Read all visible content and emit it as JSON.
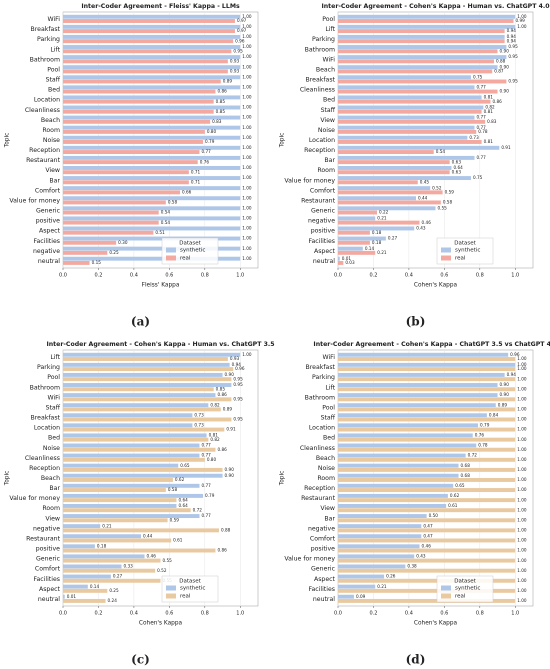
{
  "chart_data": [
    {
      "type": "barh",
      "title": "Inter-Coder Agreement - Fleiss' Kappa - LLMs",
      "caption": "(a)",
      "xlabel": "Fleiss' Kappa",
      "ylabel": "Topic",
      "legend_title": "Dataset",
      "legend": "lower right",
      "grid": true,
      "xlim": [
        0,
        1.1
      ],
      "xticks": [
        {
          "value": 0,
          "label": "0.0"
        },
        0.2,
        0.4,
        0.6,
        0.8,
        {
          "value": 1,
          "label": "1.0"
        }
      ],
      "categories": [
        "WiFi",
        "Breakfast",
        "Parking",
        "Lift",
        "Bathroom",
        "Pool",
        "Staff",
        "Bed",
        "Location",
        "Cleanliness",
        "Beach",
        "Room",
        "Noise",
        "Reception",
        "Restaurant",
        "View",
        "Bar",
        "Comfort",
        "Value for money",
        "Generic",
        "positive",
        "Aspect",
        "Facilities",
        "negative",
        "neutral"
      ],
      "series": [
        {
          "name": "synthetic",
          "color": "#aec7e8",
          "values": [
            1,
            1,
            1,
            1,
            1,
            1,
            1,
            1,
            1,
            1,
            1,
            1,
            1,
            1,
            1,
            1,
            1,
            1,
            1,
            1,
            1,
            1,
            1,
            1,
            1
          ],
          "value_labels": [
            "1.00",
            "1.00",
            "1.00",
            "1.00",
            "1.00",
            "1.00",
            "1.00",
            "1.00",
            "1.00",
            "1.00",
            "1.00",
            "1.00",
            "1.00",
            "1.00",
            "1.00",
            "1.00",
            "1.00",
            "1.00",
            "1.00",
            "1.00",
            "1.00",
            "1.00",
            "1.00",
            "1.00",
            "1.00"
          ]
        },
        {
          "name": "real",
          "color": "#f4a9a0",
          "values": [
            0.97,
            0.97,
            0.96,
            0.95,
            0.93,
            0.93,
            0.89,
            0.86,
            0.85,
            0.85,
            0.83,
            0.8,
            0.79,
            0.77,
            0.76,
            0.71,
            0.71,
            0.66,
            0.58,
            0.54,
            0.54,
            0.51,
            0.3,
            0.25,
            0.15
          ],
          "value_labels": [
            "0.97",
            "0.97",
            "0.96",
            "0.95",
            "0.93",
            "0.93",
            "0.89",
            "0.86",
            "0.85",
            "0.85",
            "0.83",
            "0.80",
            "0.79",
            "0.77",
            "0.76",
            "0.71",
            "0.71",
            "0.66",
            "0.58",
            "0.54",
            "0.54",
            "0.51",
            "0.30",
            "0.25",
            "0.15"
          ]
        }
      ]
    },
    {
      "type": "barh",
      "title": "Inter-Coder Agreement - Cohen's Kappa - Human vs. ChatGPT 4.0",
      "caption": "(b)",
      "xlabel": "Cohen's Kappa",
      "ylabel": "Topic",
      "legend_title": "Dataset",
      "legend": "lower right",
      "grid": true,
      "xlim": [
        0,
        1.1
      ],
      "xticks": [
        {
          "value": 0,
          "label": "0.0"
        },
        0.2,
        0.4,
        0.6,
        0.8,
        {
          "value": 1,
          "label": "1.0"
        }
      ],
      "categories": [
        "Pool",
        "Lift",
        "Parking",
        "Bathroom",
        "WiFi",
        "Beach",
        "Breakfast",
        "Cleanliness",
        "Bed",
        "Staff",
        "View",
        "Noise",
        "Location",
        "Reception",
        "Bar",
        "Room",
        "Value for money",
        "Comfort",
        "Restaurant",
        "Generic",
        "negative",
        "positive",
        "Facilities",
        "Aspect",
        "neutral"
      ],
      "series": [
        {
          "name": "synthetic",
          "color": "#aec7e8",
          "values": [
            1,
            1,
            0.94,
            0.95,
            0.95,
            0.9,
            0.75,
            0.77,
            0.81,
            0.82,
            0.77,
            0.77,
            0.73,
            0.91,
            0.77,
            0.64,
            0.75,
            0.52,
            0.44,
            0.55,
            0.21,
            0.43,
            0.27,
            0.14,
            0.01
          ],
          "value_labels": [
            "1.00",
            "1.00",
            "0.94",
            "0.95",
            "0.95",
            "0.90",
            "0.75",
            "0.77",
            "0.81",
            "0.82",
            "0.77",
            "0.77",
            "0.73",
            "0.91",
            "0.77",
            "0.64",
            "0.75",
            "0.52",
            "0.44",
            "0.55",
            "0.21",
            "0.43",
            "0.27",
            "0.14",
            "0.01"
          ]
        },
        {
          "name": "real",
          "color": "#f4a9a0",
          "values": [
            0.99,
            0.94,
            0.94,
            0.9,
            0.88,
            0.87,
            0.95,
            0.9,
            0.86,
            0.81,
            0.83,
            0.78,
            0.81,
            0.54,
            0.63,
            0.63,
            0.45,
            0.59,
            0.58,
            0.22,
            0.46,
            0.18,
            0.18,
            0.21,
            0.03
          ],
          "value_labels": [
            "0.99",
            "0.94",
            "0.94",
            "0.90",
            "0.88",
            "0.87",
            "0.95",
            "0.90",
            "0.86",
            "0.81",
            "0.83",
            "0.78",
            "0.81",
            "0.54",
            "0.63",
            "0.63",
            "0.45",
            "0.59",
            "0.58",
            "0.22",
            "0.46",
            "0.18",
            "0.18",
            "0.21",
            "0.03"
          ]
        }
      ]
    },
    {
      "type": "barh",
      "title": "Inter-Coder Agreement - Cohen's Kappa - Human vs. ChatGPT 3.5",
      "caption": "(c)",
      "xlabel": "Cohen's Kappa",
      "ylabel": "Topic",
      "legend_title": "Dataset",
      "legend": "lower right",
      "grid": true,
      "xlim": [
        0,
        1.1
      ],
      "xticks": [
        {
          "value": 0,
          "label": "0.0"
        },
        0.2,
        0.4,
        0.6,
        0.8,
        {
          "value": 1,
          "label": "1.0"
        }
      ],
      "categories": [
        "Lift",
        "Parking",
        "Pool",
        "Bathroom",
        "WiFi",
        "Staff",
        "Breakfast",
        "Location",
        "Bed",
        "Noise",
        "Cleanliness",
        "Reception",
        "Beach",
        "Bar",
        "Value for money",
        "Room",
        "View",
        "negative",
        "Restaurant",
        "positive",
        "Generic",
        "Comfort",
        "Facilities",
        "Aspect",
        "neutral"
      ],
      "series": [
        {
          "name": "synthetic",
          "color": "#aec7e8",
          "values": [
            1,
            0.94,
            0.9,
            0.95,
            0.86,
            0.82,
            0.73,
            0.73,
            0.81,
            0.77,
            0.77,
            0.65,
            0.9,
            0.77,
            0.79,
            0.64,
            0.77,
            0.21,
            0.44,
            0.18,
            0.46,
            0.33,
            0.27,
            0.14,
            0.01
          ],
          "value_labels": [
            "1.00",
            "0.94",
            "0.90",
            "0.95",
            "0.86",
            "0.82",
            "0.73",
            "0.73",
            "0.81",
            "0.77",
            "0.77",
            "0.65",
            "0.90",
            "0.77",
            "0.79",
            "0.64",
            "0.77",
            "0.21",
            "0.44",
            "0.18",
            "0.46",
            "0.33",
            "0.27",
            "0.14",
            "0.01"
          ]
        },
        {
          "name": "real",
          "color": "#e9c9a0",
          "values": [
            0.93,
            0.96,
            0.95,
            0.85,
            0.95,
            0.89,
            0.95,
            0.91,
            0.82,
            0.86,
            0.8,
            0.9,
            0.62,
            0.58,
            0.64,
            0.72,
            0.59,
            0.88,
            0.61,
            0.86,
            0.55,
            0.52,
            0.55,
            0.25,
            0.24
          ],
          "value_labels": [
            "0.93",
            "0.96",
            "0.95",
            "0.85",
            "0.95",
            "0.89",
            "0.95",
            "0.91",
            "0.82",
            "0.86",
            "0.80",
            "0.90",
            "0.62",
            "0.58",
            "0.64",
            "0.72",
            "0.59",
            "0.88",
            "0.61",
            "0.86",
            "0.55",
            "0.52",
            "0.55",
            "0.25",
            "0.24"
          ]
        }
      ]
    },
    {
      "type": "barh",
      "title": "Inter-Coder Agreement - Cohen's Kappa - ChatGPT 3.5 vs ChatGPT 4.0",
      "caption": "(d)",
      "xlabel": "Cohen's Kappa",
      "ylabel": "Topic",
      "legend_title": "Dataset",
      "legend": "lower right",
      "grid": true,
      "xlim": [
        0,
        1.1
      ],
      "xticks": [
        {
          "value": 0,
          "label": "0.0"
        },
        0.2,
        0.4,
        0.6,
        0.8,
        {
          "value": 1,
          "label": "1.0"
        }
      ],
      "categories": [
        "WiFi",
        "Breakfast",
        "Parking",
        "Lift",
        "Bathroom",
        "Pool",
        "Staff",
        "Location",
        "Bed",
        "Cleanliness",
        "Beach",
        "Noise",
        "Room",
        "Reception",
        "Restaurant",
        "View",
        "Bar",
        "negative",
        "Comfort",
        "positive",
        "Value for money",
        "Generic",
        "Aspect",
        "Facilities",
        "neutral"
      ],
      "series": [
        {
          "name": "synthetic",
          "color": "#aec7e8",
          "values": [
            0.96,
            1,
            0.94,
            0.9,
            0.9,
            0.89,
            0.84,
            0.79,
            0.76,
            0.78,
            0.72,
            0.68,
            0.68,
            0.65,
            0.62,
            0.61,
            0.5,
            0.47,
            0.47,
            0.46,
            0.43,
            0.38,
            0.26,
            0.21,
            0.09
          ],
          "value_labels": [
            "0.96",
            "1.00",
            "0.94",
            "0.90",
            "0.90",
            "0.89",
            "0.84",
            "0.79",
            "0.76",
            "0.78",
            "0.72",
            "0.68",
            "0.68",
            "0.65",
            "0.62",
            "0.61",
            "0.50",
            "0.47",
            "0.47",
            "0.46",
            "0.43",
            "0.38",
            "0.26",
            "0.21",
            "0.09"
          ]
        },
        {
          "name": "real",
          "color": "#e9c9a0",
          "values": [
            1,
            1,
            1,
            1,
            1,
            1,
            1,
            1,
            1,
            1,
            1,
            1,
            1,
            1,
            1,
            1,
            1,
            1,
            1,
            1,
            1,
            1,
            1,
            1,
            1
          ],
          "value_labels": [
            "1.00",
            "1.00",
            "1.00",
            "1.00",
            "1.00",
            "1.00",
            "1.00",
            "1.00",
            "1.00",
            "1.00",
            "1.00",
            "1.00",
            "1.00",
            "1.00",
            "1.00",
            "1.00",
            "1.00",
            "1.00",
            "1.00",
            "1.00",
            "1.00",
            "1.00",
            "1.00",
            "1.00",
            "1.00"
          ]
        }
      ]
    }
  ]
}
